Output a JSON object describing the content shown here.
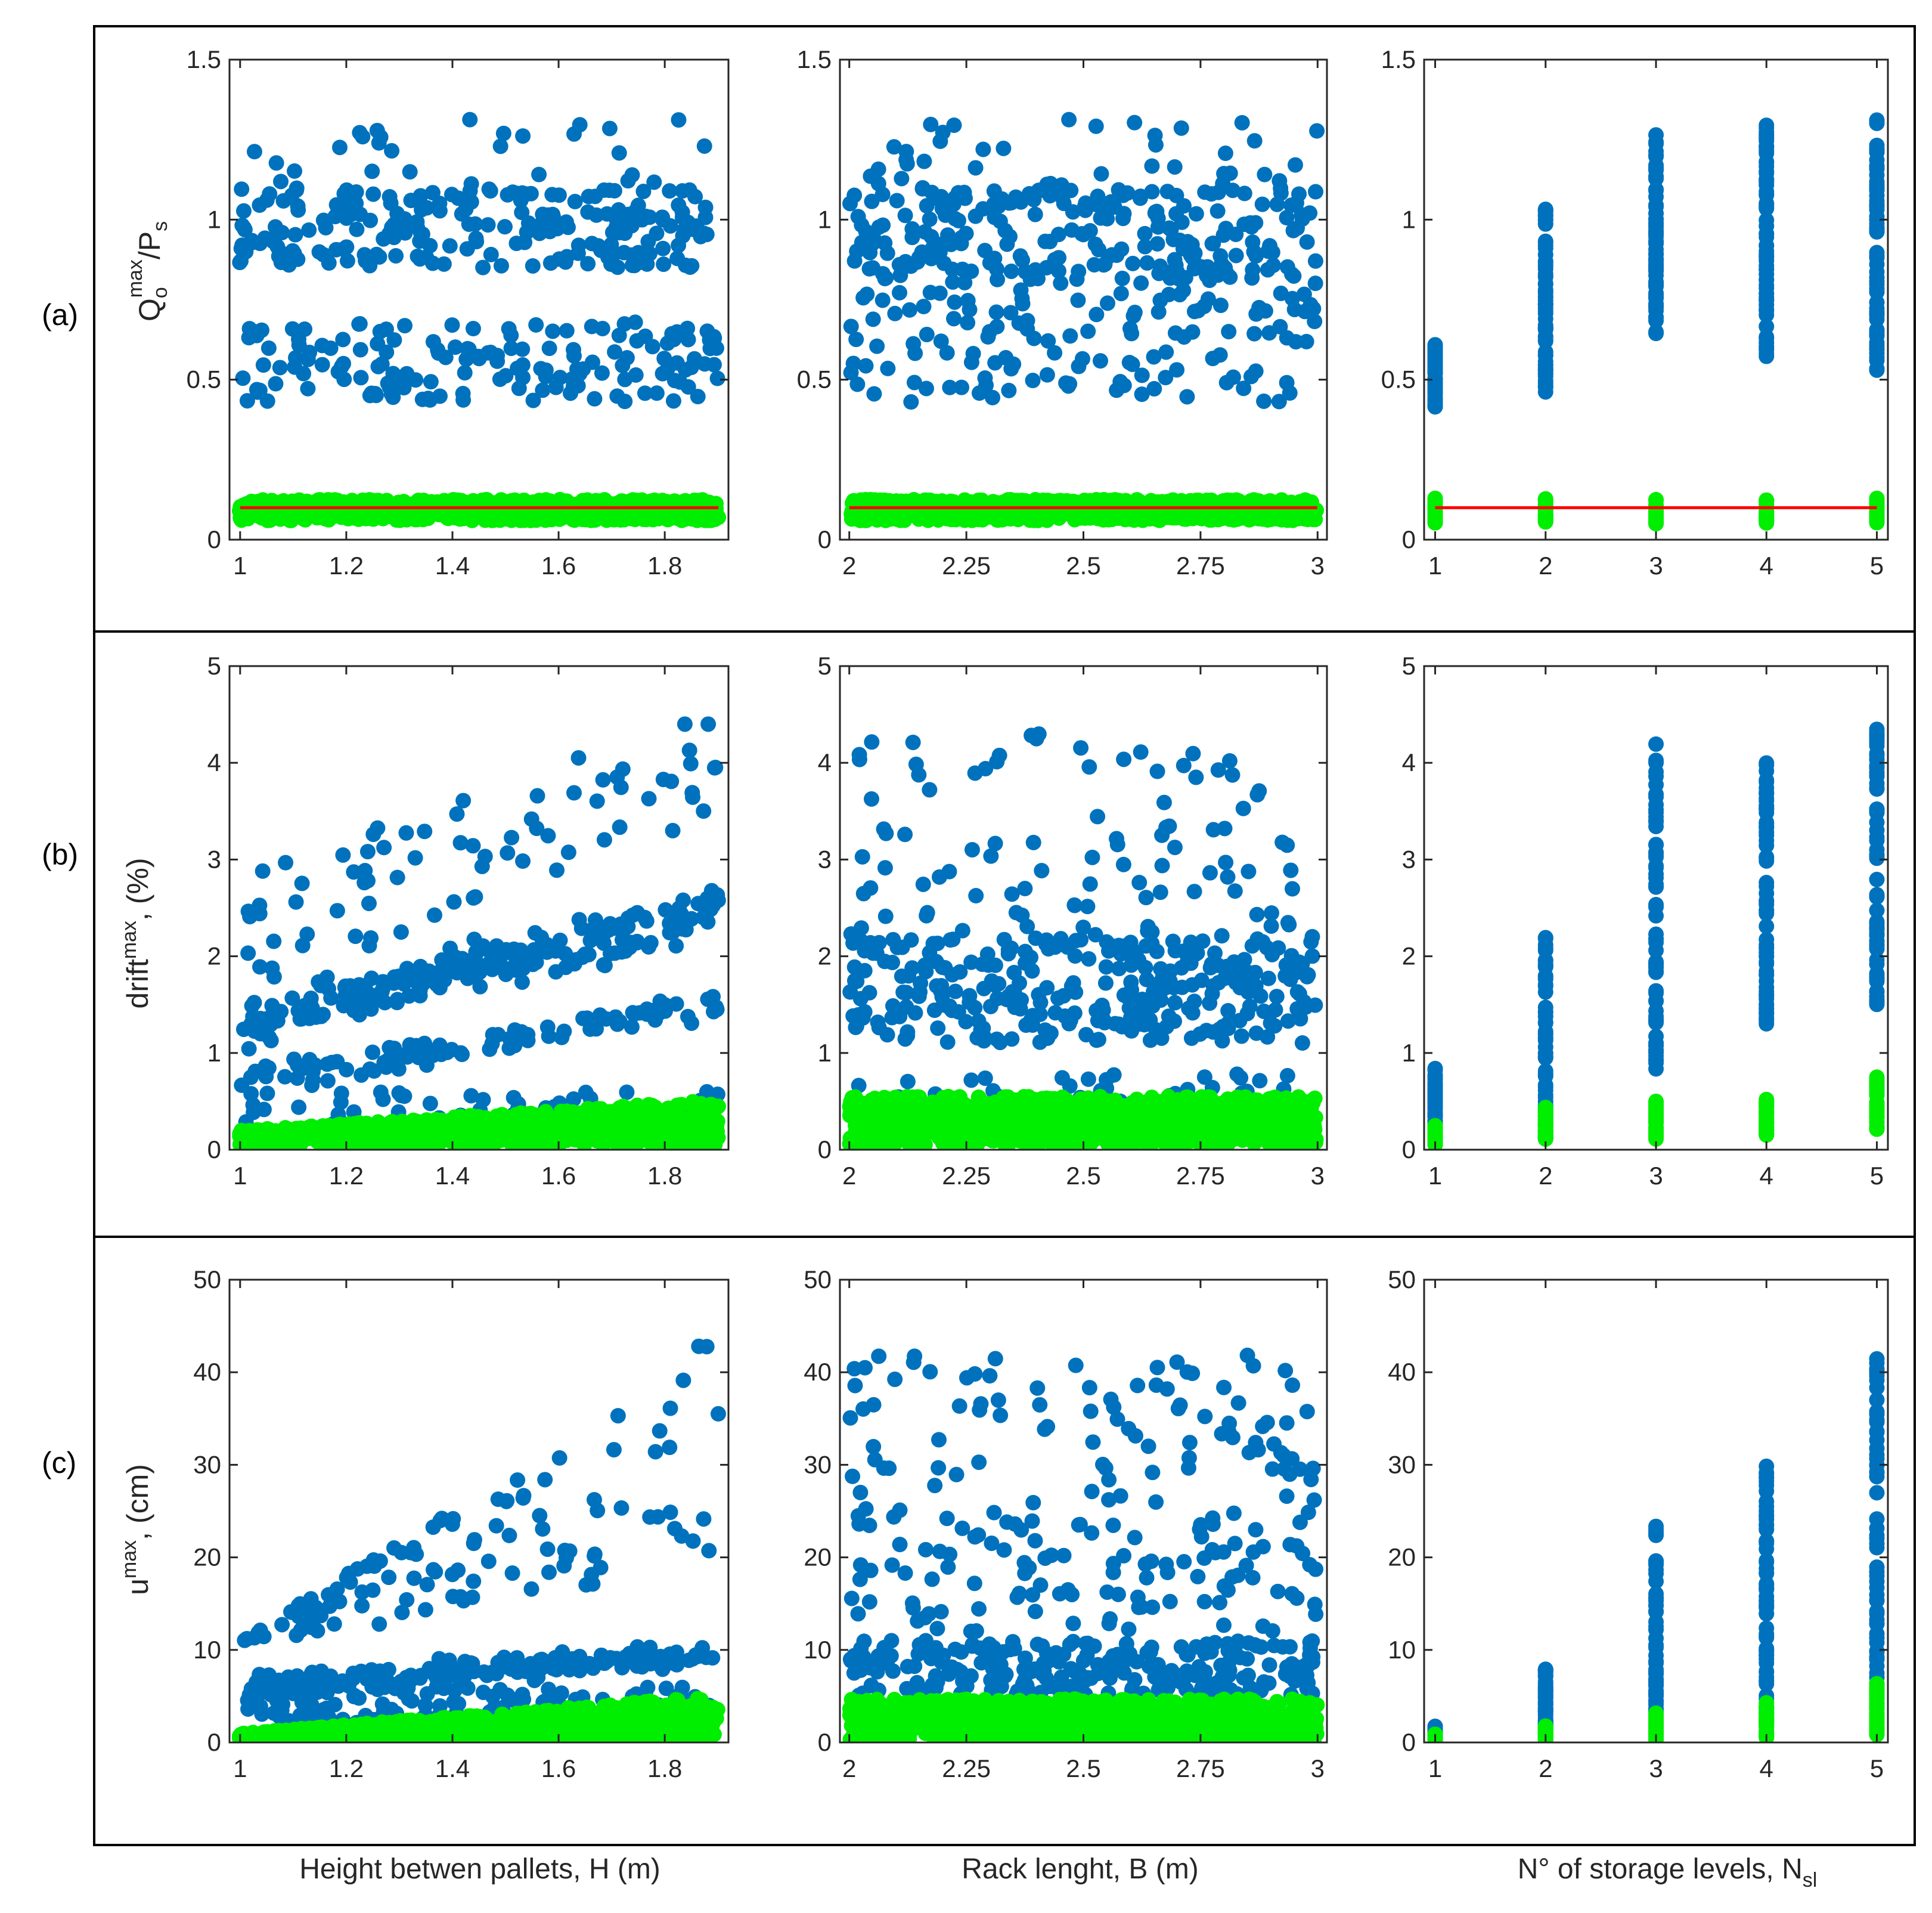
{
  "colors": {
    "series_blue": "#0072BD",
    "series_green": "#00EE00",
    "threshold_red": "#FF0000",
    "axis": "#262626",
    "frame": "#000000"
  },
  "row_labels": [
    "(a)",
    "(b)",
    "(c)"
  ],
  "column_labels": {
    "col0": {
      "text": "Height betwen pallets, H (m)"
    },
    "col1": {
      "text": "Rack lenght, B (m)"
    },
    "col2": {
      "main": "N° of storage levels, N",
      "sub": "sl"
    }
  },
  "y_labels": {
    "row0": {
      "base": "Q",
      "sub": "o",
      "sup": "max",
      "tail": "/P",
      "tail_sub": "s"
    },
    "row1": {
      "base": "drift",
      "sup": "max",
      "tail": ", (%)"
    },
    "row2": {
      "base": "u",
      "sup": "max",
      "tail": ", (cm)"
    }
  },
  "chart_data": {
    "type": "scatter",
    "layout": "3x3 grid of scatter panels",
    "x_axes": [
      {
        "name": "H",
        "unit": "m",
        "range": [
          0.98,
          1.92
        ],
        "ticks": [
          1,
          1.2,
          1.4,
          1.6,
          1.8
        ],
        "tick_labels": [
          "1",
          "1.2",
          "1.4",
          "1.6",
          "1.8"
        ]
      },
      {
        "name": "B",
        "unit": "m",
        "range": [
          1.98,
          3.02
        ],
        "ticks": [
          2,
          2.25,
          2.5,
          2.75,
          3
        ],
        "tick_labels": [
          "2",
          "2.25",
          "2.5",
          "2.75",
          "3"
        ]
      },
      {
        "name": "N_sl",
        "unit": "",
        "range": [
          0.9,
          5.1
        ],
        "ticks": [
          1,
          2,
          3,
          4,
          5
        ],
        "tick_labels": [
          "1",
          "2",
          "3",
          "4",
          "5"
        ]
      }
    ],
    "y_axes": [
      {
        "name": "Q_o^max/P_s",
        "range": [
          0,
          1.5
        ],
        "ticks": [
          0,
          0.5,
          1,
          1.5
        ],
        "tick_labels": [
          "0",
          "0.5",
          "1",
          "1.5"
        ]
      },
      {
        "name": "drift^max (%)",
        "range": [
          0,
          5
        ],
        "ticks": [
          0,
          1,
          2,
          3,
          4,
          5
        ],
        "tick_labels": [
          "0",
          "1",
          "2",
          "3",
          "4",
          "5"
        ]
      },
      {
        "name": "u^max (cm)",
        "range": [
          0,
          50
        ],
        "ticks": [
          0,
          10,
          20,
          30,
          40,
          50
        ],
        "tick_labels": [
          "0",
          "10",
          "20",
          "30",
          "40",
          "50"
        ]
      }
    ],
    "threshold_line": {
      "row": 0,
      "y": 0.1,
      "color": "#FF0000"
    },
    "series_blue_ranges": {
      "row0": {
        "vs_levels": [
          [
            1,
            0.41,
            0.61
          ],
          [
            2,
            0.45,
            1.04
          ],
          [
            3,
            0.64,
            1.27
          ],
          [
            4,
            0.56,
            1.31
          ],
          [
            5,
            0.51,
            1.32
          ]
        ]
      },
      "row1": {
        "vs_levels": [
          [
            1,
            0.05,
            0.85
          ],
          [
            2,
            0.1,
            2.2
          ],
          [
            3,
            0.8,
            4.2
          ],
          [
            4,
            1.3,
            4.0
          ],
          [
            5,
            1.5,
            4.35
          ]
        ]
      },
      "row2": {
        "vs_levels": [
          [
            1,
            0.2,
            1.8
          ],
          [
            2,
            0.5,
            8.5
          ],
          [
            3,
            1.5,
            24
          ],
          [
            4,
            2,
            30.5
          ],
          [
            5,
            2,
            41.5
          ]
        ]
      }
    },
    "series_green_ranges": {
      "row0": {
        "band": [
          0.05,
          0.13
        ]
      },
      "row1": {
        "vs_levels": [
          [
            1,
            0.05,
            0.25
          ],
          [
            2,
            0.1,
            0.45
          ],
          [
            3,
            0.1,
            0.5
          ],
          [
            4,
            0.15,
            0.55
          ],
          [
            5,
            0.2,
            0.75
          ]
        ]
      },
      "row2": {
        "vs_levels": [
          [
            1,
            0.1,
            0.9
          ],
          [
            2,
            0.2,
            1.8
          ],
          [
            3,
            0.3,
            3.2
          ],
          [
            4,
            0.5,
            4.5
          ],
          [
            5,
            0.8,
            6.5
          ]
        ]
      }
    }
  }
}
